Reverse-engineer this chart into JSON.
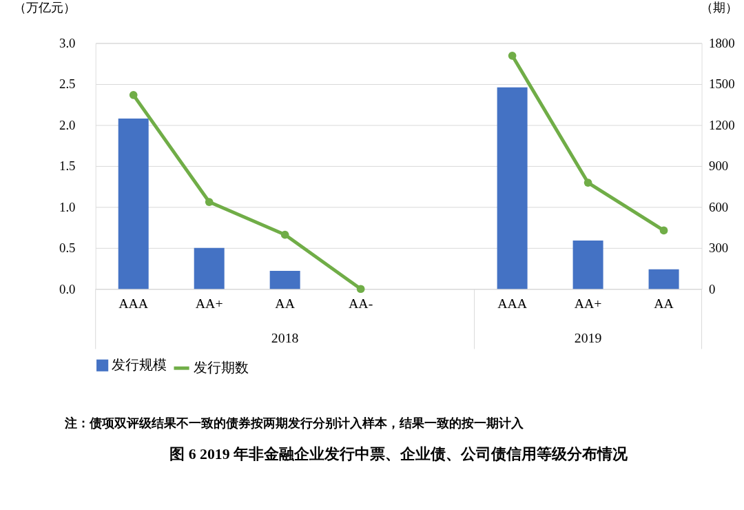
{
  "chart_data": {
    "type": "bar",
    "title": "图 6   2019 年非金融企业发行中票、企业债、公司债信用等级分布情况",
    "ylabel": "（万亿元）",
    "y2label": "（期）",
    "categories": [
      "AAA",
      "AA+",
      "AA",
      "AA-",
      null,
      "AAA",
      "AA+",
      "AA"
    ],
    "series": [
      {
        "name": "发行规模",
        "color": "#4472c4",
        "values": [
          2.08,
          0.5,
          0.22,
          null,
          null,
          2.46,
          0.59,
          0.24
        ]
      },
      {
        "name": "发行期数",
        "type": "line",
        "axis": "y2",
        "color": "#70ad47",
        "marker": "circle",
        "values": [
          1420,
          637,
          397,
          0,
          null,
          1708,
          778,
          428
        ]
      }
    ],
    "ylim": [
      0,
      3.0
    ],
    "yticks": [
      {
        "value": 0,
        "label": "0.0"
      },
      {
        "value": 0.5,
        "label": "0.5"
      },
      {
        "value": 1,
        "label": "1.0"
      },
      {
        "value": 1.5,
        "label": "1.5"
      },
      {
        "value": 2,
        "label": "2.0"
      },
      {
        "value": 2.5,
        "label": "2.5"
      },
      {
        "value": 3,
        "label": "3.0"
      }
    ],
    "y2lim": [
      0,
      1800
    ],
    "y2ticks": [
      0,
      300,
      600,
      900,
      1200,
      1500,
      1800
    ],
    "grid": "y",
    "legend": "bottom",
    "annotations": [
      "2018",
      "2019",
      "注：债项双评级结果不一致的债券按两期发行分别计入样本，结果一致的按一期计入"
    ]
  }
}
